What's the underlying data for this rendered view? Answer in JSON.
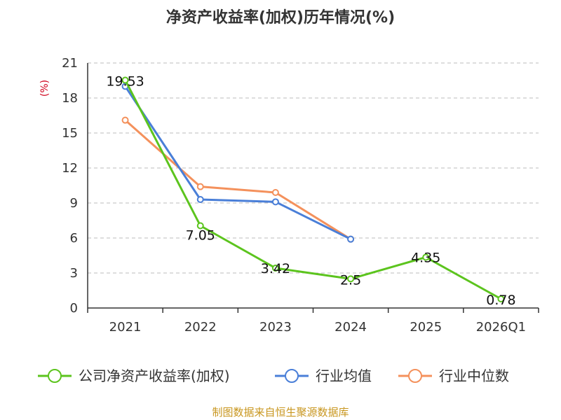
{
  "chart_data": {
    "type": "line",
    "title": "净资产收益率(加权)历年情况(%)",
    "ylabel": "(%)",
    "xlabel": "",
    "categories": [
      "2021",
      "2022",
      "2023",
      "2024",
      "2025",
      "2026Q1"
    ],
    "ylim": [
      0,
      21
    ],
    "yticks": [
      0,
      3,
      6,
      9,
      12,
      15,
      18,
      21
    ],
    "grid": true,
    "legend_position": "bottom",
    "series": [
      {
        "name": "公司净资产收益率(加权)",
        "color": "#5cc41e",
        "values": [
          19.53,
          7.05,
          3.42,
          2.5,
          4.35,
          0.78
        ],
        "labels": [
          "19.53",
          "7.05",
          "3.42",
          "2.5",
          "4.35",
          "0.78"
        ]
      },
      {
        "name": "行业均值",
        "color": "#4a7fd8",
        "values": [
          19.0,
          9.3,
          9.1,
          5.9,
          null,
          null
        ]
      },
      {
        "name": "行业中位数",
        "color": "#f4915c",
        "values": [
          16.1,
          10.4,
          9.9,
          5.9,
          null,
          null
        ]
      }
    ]
  },
  "source": "制图数据来自恒生聚源数据库"
}
